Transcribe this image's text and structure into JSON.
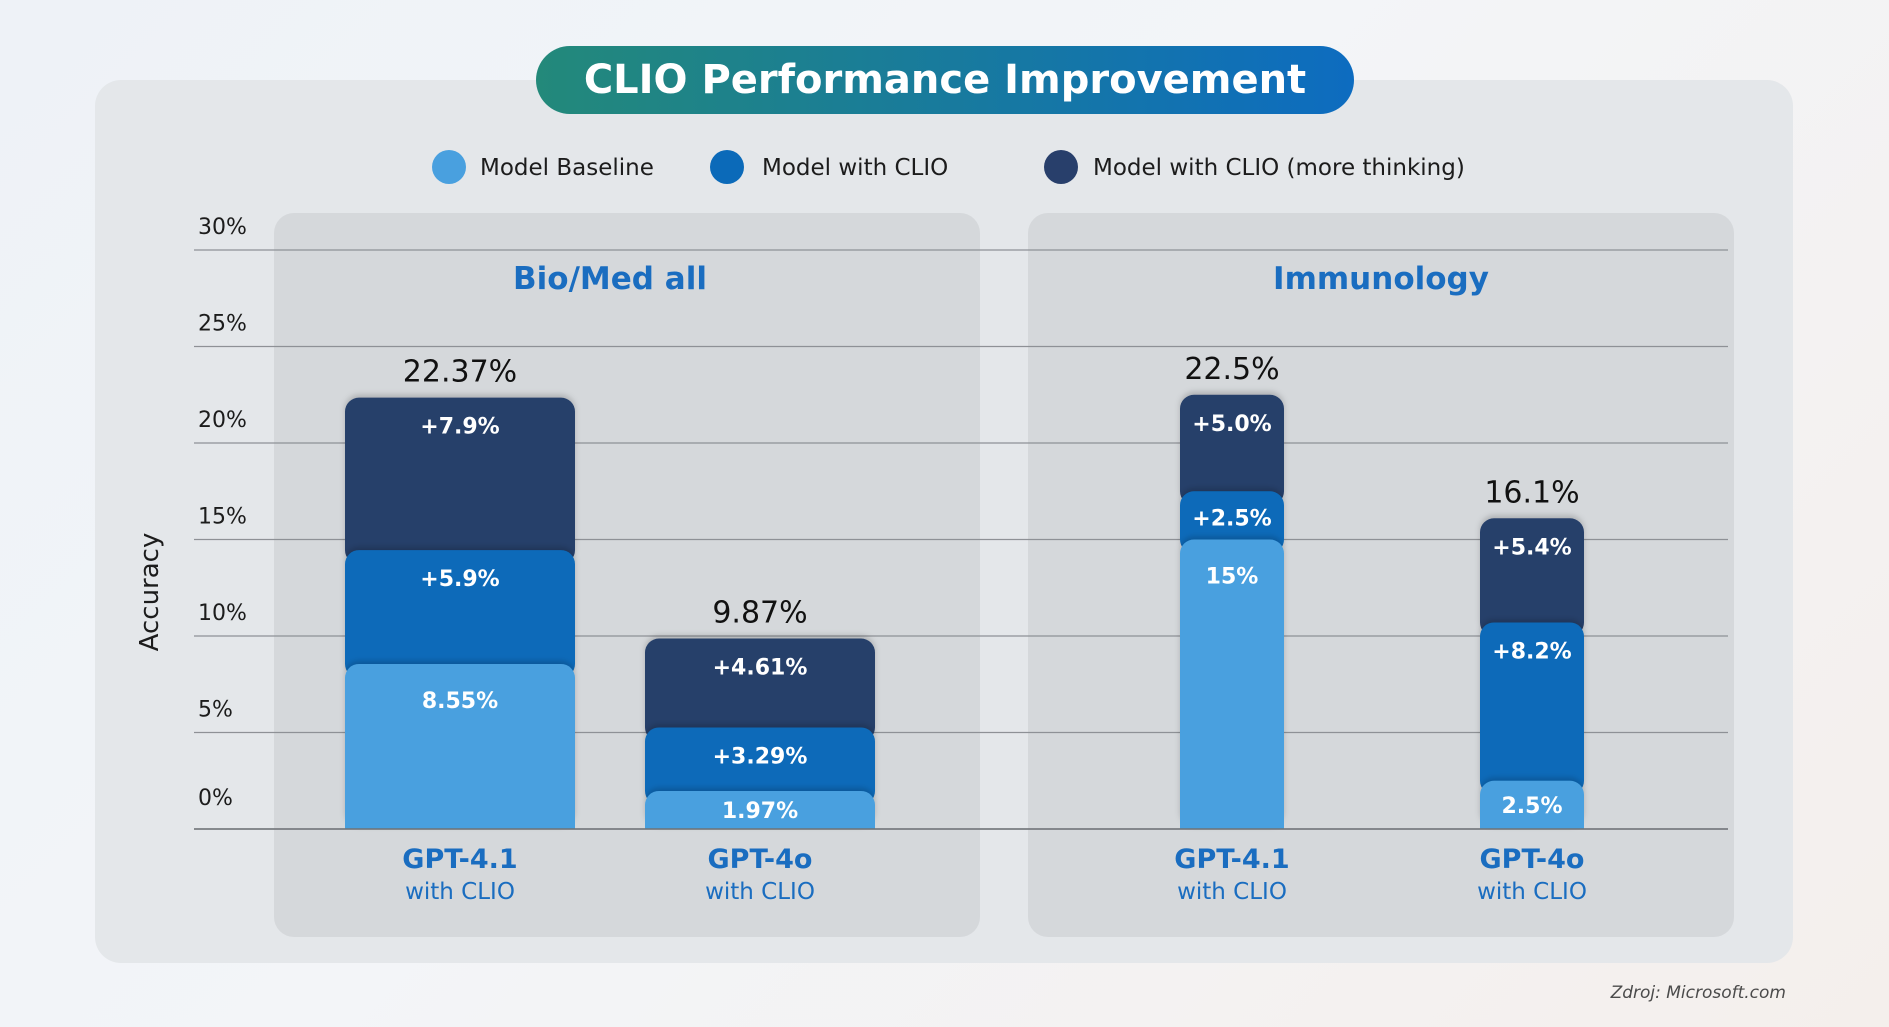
{
  "title": "CLIO Performance Improvement",
  "source": "Zdroj: Microsoft.com",
  "colors": {
    "baseline": "#49a0df",
    "with_clio": "#0b6ab9",
    "more_thinking": "#283f6b",
    "title_start": "#23897a",
    "title_end": "#0d6cc0",
    "accent_text": "#1a6dc0"
  },
  "chart_data": {
    "type": "bar",
    "stacked": true,
    "ylabel": "Accuracy",
    "ylim": [
      0,
      30
    ],
    "yticks": [
      "0%",
      "5%",
      "10%",
      "15%",
      "20%",
      "25%",
      "30%"
    ],
    "ytick_values": [
      0,
      5,
      10,
      15,
      20,
      25,
      30
    ],
    "legend": [
      {
        "name": "Model Baseline",
        "key": "baseline"
      },
      {
        "name": "Model with CLIO",
        "key": "with_clio"
      },
      {
        "name": "Model with CLIO (more thinking)",
        "key": "more_thinking"
      }
    ],
    "panels": [
      {
        "title": "Bio/Med all",
        "bars": [
          {
            "model": "GPT-4.1",
            "sublabel": "with CLIO",
            "total": 22.37,
            "total_label": "22.37%",
            "segments": [
              {
                "series": "baseline",
                "value": 8.55,
                "label": "8.55%"
              },
              {
                "series": "with_clio",
                "value": 5.9,
                "label": "+5.9%"
              },
              {
                "series": "more_thinking",
                "value": 7.9,
                "label": "+7.9%"
              }
            ]
          },
          {
            "model": "GPT-4o",
            "sublabel": "with CLIO",
            "total": 9.87,
            "total_label": "9.87%",
            "segments": [
              {
                "series": "baseline",
                "value": 1.97,
                "label": "1.97%"
              },
              {
                "series": "with_clio",
                "value": 3.29,
                "label": "+3.29%"
              },
              {
                "series": "more_thinking",
                "value": 4.61,
                "label": "+4.61%"
              }
            ]
          }
        ]
      },
      {
        "title": "Immunology",
        "bars": [
          {
            "model": "GPT-4.1",
            "sublabel": "with CLIO",
            "total": 22.5,
            "total_label": "22.5%",
            "segments": [
              {
                "series": "baseline",
                "value": 15,
                "label": "15%"
              },
              {
                "series": "with_clio",
                "value": 2.5,
                "label": "+2.5%"
              },
              {
                "series": "more_thinking",
                "value": 5.0,
                "label": "+5.0%"
              }
            ]
          },
          {
            "model": "GPT-4o",
            "sublabel": "with CLIO",
            "total": 16.1,
            "total_label": "16.1%",
            "segments": [
              {
                "series": "baseline",
                "value": 2.5,
                "label": "2.5%"
              },
              {
                "series": "with_clio",
                "value": 8.2,
                "label": "+8.2%"
              },
              {
                "series": "more_thinking",
                "value": 5.4,
                "label": "+5.4%"
              }
            ]
          }
        ]
      }
    ]
  }
}
